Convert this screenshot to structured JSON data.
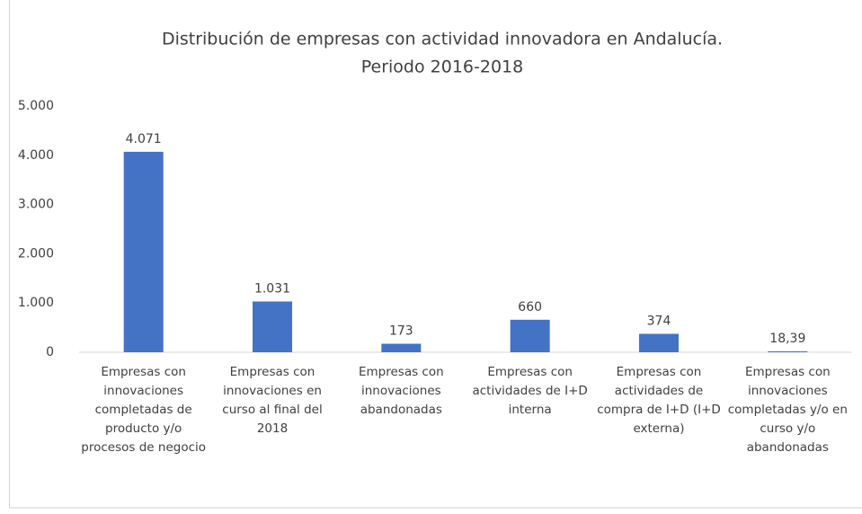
{
  "chart_data": {
    "type": "bar",
    "title": [
      "Distribución de empresas con actividad innovadora en Andalucía.",
      "Periodo 2016-2018"
    ],
    "categories": [
      "Empresas con innovaciones completadas de producto y/o procesos de negocio",
      "Empresas con innovaciones en curso al final del 2018",
      "Empresas con innovaciones abandonadas",
      "Empresas con actividades de I+D interna",
      "Empresas con actividades de compra de I+D (I+D externa)",
      "Empresas con innovaciones completadas y/o en curso y/o abandonadas"
    ],
    "values": [
      4071,
      1031,
      173,
      660,
      374,
      18.39
    ],
    "value_labels": [
      "4.071",
      "1.031",
      "173",
      "660",
      "374",
      "18,39"
    ],
    "color": "#4472c4",
    "ylim": [
      0,
      5000
    ],
    "yticks": [
      0,
      {
        "value": 1000,
        "label": "1.000"
      },
      {
        "value": 2000,
        "label": "2.000"
      },
      {
        "value": 3000,
        "label": "3.000"
      },
      {
        "value": 4000,
        "label": "4.000"
      },
      {
        "value": 5000,
        "label": "5.000"
      }
    ],
    "grid": false
  }
}
